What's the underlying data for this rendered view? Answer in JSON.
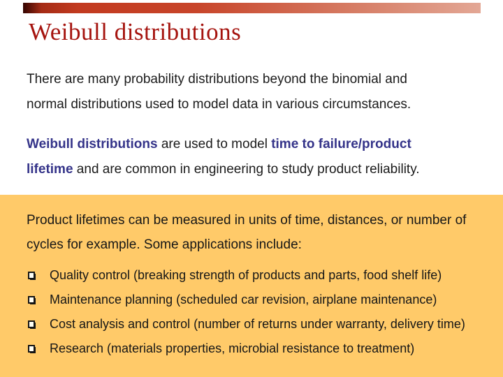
{
  "slide": {
    "title": "Weibull distributions",
    "colors": {
      "title_red": "#a5130e",
      "accent_navy": "#343389",
      "panel_yellow": "#ffca69",
      "bar_gradient_start": "#330300",
      "bar_gradient_mid": "#c8452a",
      "bar_gradient_end": "#e3a795",
      "body_text": "#1b1b1b"
    },
    "paragraph1": {
      "lines": [
        "There are many probability distributions beyond the binomial and",
        "normal distributions used to model data in various circumstances."
      ]
    },
    "paragraph2": {
      "bold1": "Weibull distributions",
      "mid": " are used to model ",
      "bold2_line1": "time to failure/product",
      "bold2_line2": "lifetime",
      "end": " and are common in engineering to study product reliability."
    },
    "panel": {
      "intro_lines": [
        "Product lifetimes can be measured in units of time, distances, or number of",
        "cycles for example. Some applications include:"
      ],
      "bullet_icon": "shadowed-square-bullet",
      "bullets": [
        "Quality control (breaking strength of products and parts, food shelf life)",
        "Maintenance planning (scheduled car revision, airplane maintenance)",
        "Cost analysis and control (number of returns under warranty, delivery time)",
        "Research (materials properties, microbial resistance to treatment)"
      ]
    }
  }
}
